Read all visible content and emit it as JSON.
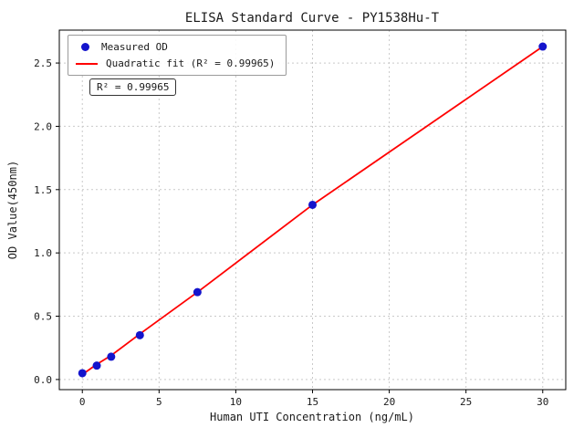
{
  "chart_data": {
    "type": "scatter",
    "title": "ELISA Standard Curve - PY1538Hu-T",
    "xlabel": "Human UTI Concentration (ng/mL)",
    "ylabel": "OD Value(450nm)",
    "series": [
      {
        "name": "Measured OD",
        "marker": "dot",
        "color": "#1414cc",
        "x": [
          0,
          0.94,
          1.88,
          3.75,
          7.5,
          15,
          30
        ],
        "y": [
          0.05,
          0.11,
          0.18,
          0.35,
          0.69,
          1.38,
          2.63
        ]
      },
      {
        "name": "Quadratic fit (R² = 0.99965)",
        "marker": "line",
        "color": "#ff0000",
        "x": [
          0,
          0.94,
          1.88,
          3.75,
          7.5,
          15,
          30
        ],
        "y": [
          0.04,
          0.12,
          0.19,
          0.36,
          0.69,
          1.38,
          2.63
        ]
      }
    ],
    "legend": [
      {
        "label": "Measured OD"
      },
      {
        "label": "Quadratic fit (R² = 0.99965)"
      }
    ],
    "annotation": "R² = 0.99965",
    "xticks": [
      0,
      5,
      10,
      15,
      20,
      25,
      30
    ],
    "yticks": [
      0.0,
      0.5,
      1.0,
      1.5,
      2.0,
      2.5
    ],
    "xlim": [
      -1.5,
      31.5
    ],
    "ylim": [
      -0.08,
      2.76
    ],
    "grid": true,
    "legend_position": "upper left",
    "colors": {
      "point": "#1414cc",
      "fit_line": "#ff0000",
      "grid": "#c9c9c9",
      "axis": "#000000"
    }
  }
}
